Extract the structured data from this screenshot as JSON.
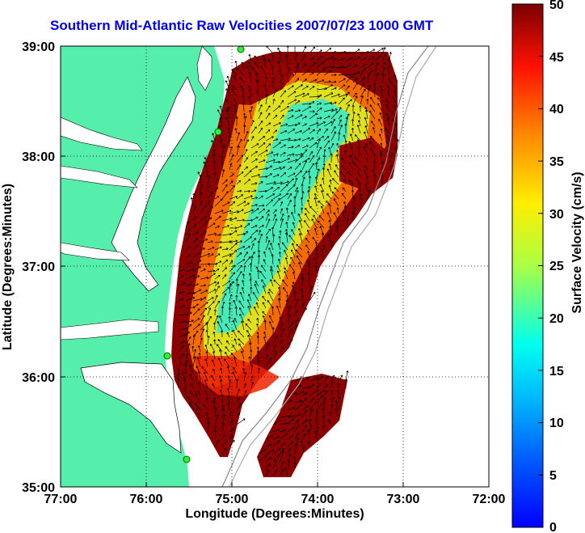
{
  "title": "Southern Mid-Atlantic Raw Velocities 2007/07/23 1000 GMT",
  "map": {
    "xlabel": "Longitude (Degrees:Minutes)",
    "ylabel": "Latitude (Degrees:Minutes)",
    "x_ticks": [
      "77:00",
      "76:00",
      "75:00",
      "74:00",
      "73:00",
      "72:00"
    ],
    "y_ticks": [
      "39:00",
      "38:00",
      "37:00",
      "36:00",
      "35:00"
    ],
    "x_range_deg": [
      -77,
      -72
    ],
    "y_range_deg": [
      35,
      39
    ],
    "grid": "dotted",
    "land_color": "#55eeaa",
    "water_color": "#ffffff",
    "station_color": "#33ee33"
  },
  "colorbar": {
    "label": "Surface Velocity (cm/s)",
    "ticks": [
      "50",
      "45",
      "40",
      "35",
      "30",
      "25",
      "20",
      "15",
      "10",
      "5",
      "0"
    ],
    "range": [
      0,
      50
    ],
    "colormap": "jet"
  }
}
